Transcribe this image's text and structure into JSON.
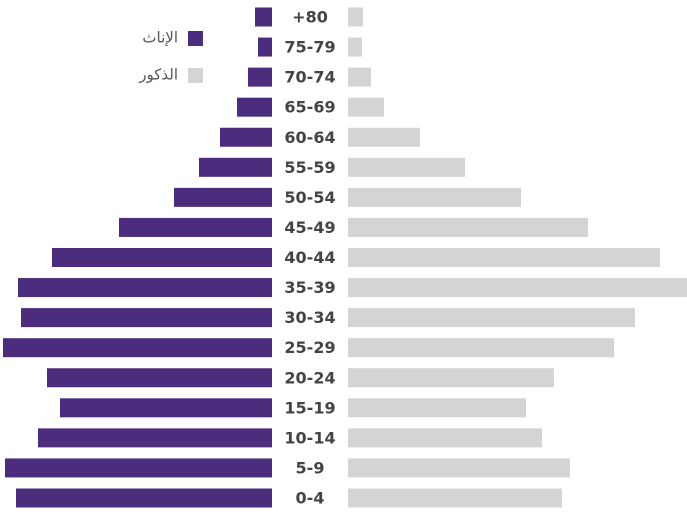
{
  "chart_data": {
    "type": "pyramid",
    "categories": [
      "+80",
      "75-79",
      "70-74",
      "65-69",
      "60-64",
      "55-59",
      "50-54",
      "45-49",
      "40-44",
      "35-39",
      "30-34",
      "25-29",
      "20-24",
      "15-19",
      "10-14",
      "5-9",
      "0-4"
    ],
    "series": [
      {
        "name": "الإناث",
        "color": "#4b2c7d",
        "side": "left",
        "values": [
          17,
          14,
          24,
          35,
          52,
          73,
          98,
          153,
          220,
          254,
          251,
          269,
          225,
          212,
          234,
          267,
          256
        ]
      },
      {
        "name": "الذكور",
        "color": "#d4d4d4",
        "side": "right",
        "values": [
          15,
          14,
          23,
          36,
          72,
          117,
          173,
          240,
          312,
          339,
          287,
          266,
          206,
          178,
          194,
          222,
          214
        ]
      }
    ],
    "xlim": [
      0,
      339
    ]
  }
}
